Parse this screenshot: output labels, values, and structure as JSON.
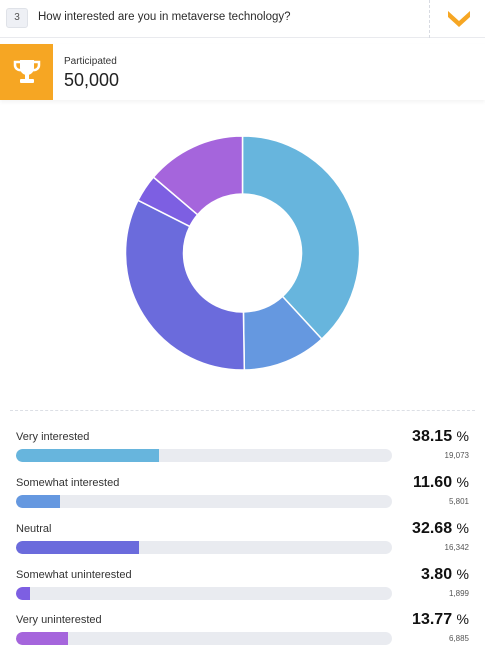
{
  "question": {
    "number": "3",
    "text": "How interested are you in metaverse technology?"
  },
  "participated": {
    "label": "Participated",
    "value": "50,000",
    "accent_color": "#f6a623"
  },
  "results": [
    {
      "label": "Very interested",
      "percent": 38.15,
      "percent_text": "38.15",
      "count": "19,073",
      "color": "#67b5dd"
    },
    {
      "label": "Somewhat interested",
      "percent": 11.6,
      "percent_text": "11.60",
      "count": "5,801",
      "color": "#6598e0"
    },
    {
      "label": "Neutral",
      "percent": 32.68,
      "percent_text": "32.68",
      "count": "16,342",
      "color": "#6b6bdc"
    },
    {
      "label": "Somewhat uninterested",
      "percent": 3.8,
      "percent_text": "3.80",
      "count": "1,899",
      "color": "#7d5fe2"
    },
    {
      "label": "Very uninterested",
      "percent": 13.77,
      "percent_text": "13.77",
      "count": "6,885",
      "color": "#a565dc"
    }
  ],
  "percent_symbol": "%",
  "chart_data": {
    "type": "pie",
    "categories": [
      "Very interested",
      "Somewhat interested",
      "Neutral",
      "Somewhat uninterested",
      "Very uninterested"
    ],
    "values": [
      38.15,
      11.6,
      32.68,
      3.8,
      13.77
    ],
    "colors": [
      "#67b5dd",
      "#6598e0",
      "#6b6bdc",
      "#7d5fe2",
      "#a565dc"
    ],
    "donut": true
  },
  "icons": {
    "toggle": "chevron-down-icon",
    "trophy": "trophy-icon"
  }
}
